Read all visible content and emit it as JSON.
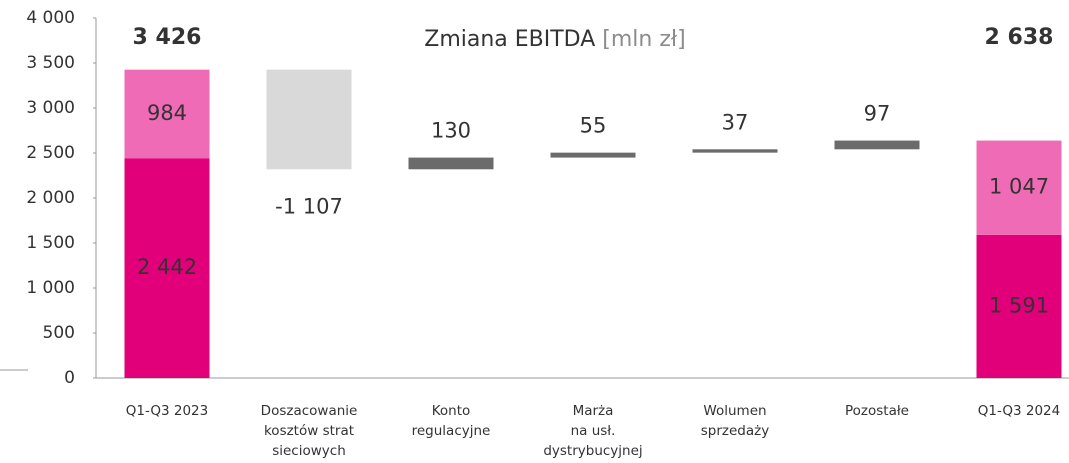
{
  "chart_data": {
    "type": "waterfall",
    "title": "Zmiana EBITDA",
    "title_unit": "[mln zł]",
    "categories": [
      "Q1-Q3 2023",
      "Doszacowanie\nkosztów strat\nsieciowych",
      "Konto\nregulacyjne",
      "Marża\nna usł.\ndystrybucyjnej",
      "Wolumen\nsprzedaży",
      "Pozostałe",
      "Q1-Q3 2024"
    ],
    "start": {
      "values": [
        2442,
        984
      ],
      "value_labels": [
        "2 442",
        "984"
      ],
      "total": 3426,
      "total_label": "3 426"
    },
    "steps": {
      "values": [
        -1107,
        130,
        55,
        37,
        97
      ],
      "value_labels": [
        "-1 107",
        "130",
        "55",
        "37",
        "97"
      ]
    },
    "end": {
      "values": [
        1591,
        1047
      ],
      "value_labels": [
        "1 591",
        "1 047"
      ],
      "total": 2638,
      "total_label": "2 638"
    },
    "segment_colors": [
      "#e2007a",
      "#f06bb5"
    ],
    "increase_color": "#6b6b6b",
    "decrease_color": "#d9d9d9",
    "ylim": [
      0,
      4000
    ],
    "yticks": [
      0,
      500,
      {
        "value": 1000,
        "label": "1 000"
      },
      {
        "value": 1500,
        "label": "1 500"
      },
      {
        "value": 2000,
        "label": "2 000"
      },
      {
        "value": 2500,
        "label": "2 500"
      },
      {
        "value": 3000,
        "label": "3 000"
      },
      {
        "value": 3500,
        "label": "3 500"
      },
      {
        "value": 4000,
        "label": "4 000"
      }
    ]
  }
}
